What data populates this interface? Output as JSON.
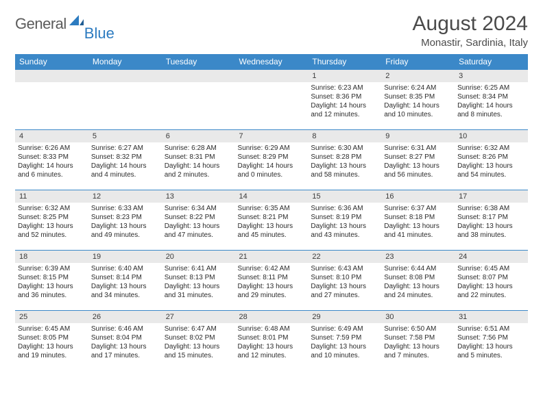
{
  "logo": {
    "text1": "General",
    "text2": "Blue"
  },
  "title": "August 2024",
  "location": "Monastir, Sardinia, Italy",
  "colors": {
    "header_bg": "#3b88c8",
    "header_text": "#ffffff",
    "daybar_bg": "#e9e9e9",
    "row_border": "#3b88c8",
    "logo_gray": "#5a5a5a",
    "logo_blue": "#2c7bc0",
    "body_text": "#2a2a2a"
  },
  "weekdays": [
    "Sunday",
    "Monday",
    "Tuesday",
    "Wednesday",
    "Thursday",
    "Friday",
    "Saturday"
  ],
  "weeks": [
    [
      null,
      null,
      null,
      null,
      {
        "n": "1",
        "sr": "Sunrise: 6:23 AM",
        "ss": "Sunset: 8:36 PM",
        "d1": "Daylight: 14 hours",
        "d2": "and 12 minutes."
      },
      {
        "n": "2",
        "sr": "Sunrise: 6:24 AM",
        "ss": "Sunset: 8:35 PM",
        "d1": "Daylight: 14 hours",
        "d2": "and 10 minutes."
      },
      {
        "n": "3",
        "sr": "Sunrise: 6:25 AM",
        "ss": "Sunset: 8:34 PM",
        "d1": "Daylight: 14 hours",
        "d2": "and 8 minutes."
      }
    ],
    [
      {
        "n": "4",
        "sr": "Sunrise: 6:26 AM",
        "ss": "Sunset: 8:33 PM",
        "d1": "Daylight: 14 hours",
        "d2": "and 6 minutes."
      },
      {
        "n": "5",
        "sr": "Sunrise: 6:27 AM",
        "ss": "Sunset: 8:32 PM",
        "d1": "Daylight: 14 hours",
        "d2": "and 4 minutes."
      },
      {
        "n": "6",
        "sr": "Sunrise: 6:28 AM",
        "ss": "Sunset: 8:31 PM",
        "d1": "Daylight: 14 hours",
        "d2": "and 2 minutes."
      },
      {
        "n": "7",
        "sr": "Sunrise: 6:29 AM",
        "ss": "Sunset: 8:29 PM",
        "d1": "Daylight: 14 hours",
        "d2": "and 0 minutes."
      },
      {
        "n": "8",
        "sr": "Sunrise: 6:30 AM",
        "ss": "Sunset: 8:28 PM",
        "d1": "Daylight: 13 hours",
        "d2": "and 58 minutes."
      },
      {
        "n": "9",
        "sr": "Sunrise: 6:31 AM",
        "ss": "Sunset: 8:27 PM",
        "d1": "Daylight: 13 hours",
        "d2": "and 56 minutes."
      },
      {
        "n": "10",
        "sr": "Sunrise: 6:32 AM",
        "ss": "Sunset: 8:26 PM",
        "d1": "Daylight: 13 hours",
        "d2": "and 54 minutes."
      }
    ],
    [
      {
        "n": "11",
        "sr": "Sunrise: 6:32 AM",
        "ss": "Sunset: 8:25 PM",
        "d1": "Daylight: 13 hours",
        "d2": "and 52 minutes."
      },
      {
        "n": "12",
        "sr": "Sunrise: 6:33 AM",
        "ss": "Sunset: 8:23 PM",
        "d1": "Daylight: 13 hours",
        "d2": "and 49 minutes."
      },
      {
        "n": "13",
        "sr": "Sunrise: 6:34 AM",
        "ss": "Sunset: 8:22 PM",
        "d1": "Daylight: 13 hours",
        "d2": "and 47 minutes."
      },
      {
        "n": "14",
        "sr": "Sunrise: 6:35 AM",
        "ss": "Sunset: 8:21 PM",
        "d1": "Daylight: 13 hours",
        "d2": "and 45 minutes."
      },
      {
        "n": "15",
        "sr": "Sunrise: 6:36 AM",
        "ss": "Sunset: 8:19 PM",
        "d1": "Daylight: 13 hours",
        "d2": "and 43 minutes."
      },
      {
        "n": "16",
        "sr": "Sunrise: 6:37 AM",
        "ss": "Sunset: 8:18 PM",
        "d1": "Daylight: 13 hours",
        "d2": "and 41 minutes."
      },
      {
        "n": "17",
        "sr": "Sunrise: 6:38 AM",
        "ss": "Sunset: 8:17 PM",
        "d1": "Daylight: 13 hours",
        "d2": "and 38 minutes."
      }
    ],
    [
      {
        "n": "18",
        "sr": "Sunrise: 6:39 AM",
        "ss": "Sunset: 8:15 PM",
        "d1": "Daylight: 13 hours",
        "d2": "and 36 minutes."
      },
      {
        "n": "19",
        "sr": "Sunrise: 6:40 AM",
        "ss": "Sunset: 8:14 PM",
        "d1": "Daylight: 13 hours",
        "d2": "and 34 minutes."
      },
      {
        "n": "20",
        "sr": "Sunrise: 6:41 AM",
        "ss": "Sunset: 8:13 PM",
        "d1": "Daylight: 13 hours",
        "d2": "and 31 minutes."
      },
      {
        "n": "21",
        "sr": "Sunrise: 6:42 AM",
        "ss": "Sunset: 8:11 PM",
        "d1": "Daylight: 13 hours",
        "d2": "and 29 minutes."
      },
      {
        "n": "22",
        "sr": "Sunrise: 6:43 AM",
        "ss": "Sunset: 8:10 PM",
        "d1": "Daylight: 13 hours",
        "d2": "and 27 minutes."
      },
      {
        "n": "23",
        "sr": "Sunrise: 6:44 AM",
        "ss": "Sunset: 8:08 PM",
        "d1": "Daylight: 13 hours",
        "d2": "and 24 minutes."
      },
      {
        "n": "24",
        "sr": "Sunrise: 6:45 AM",
        "ss": "Sunset: 8:07 PM",
        "d1": "Daylight: 13 hours",
        "d2": "and 22 minutes."
      }
    ],
    [
      {
        "n": "25",
        "sr": "Sunrise: 6:45 AM",
        "ss": "Sunset: 8:05 PM",
        "d1": "Daylight: 13 hours",
        "d2": "and 19 minutes."
      },
      {
        "n": "26",
        "sr": "Sunrise: 6:46 AM",
        "ss": "Sunset: 8:04 PM",
        "d1": "Daylight: 13 hours",
        "d2": "and 17 minutes."
      },
      {
        "n": "27",
        "sr": "Sunrise: 6:47 AM",
        "ss": "Sunset: 8:02 PM",
        "d1": "Daylight: 13 hours",
        "d2": "and 15 minutes."
      },
      {
        "n": "28",
        "sr": "Sunrise: 6:48 AM",
        "ss": "Sunset: 8:01 PM",
        "d1": "Daylight: 13 hours",
        "d2": "and 12 minutes."
      },
      {
        "n": "29",
        "sr": "Sunrise: 6:49 AM",
        "ss": "Sunset: 7:59 PM",
        "d1": "Daylight: 13 hours",
        "d2": "and 10 minutes."
      },
      {
        "n": "30",
        "sr": "Sunrise: 6:50 AM",
        "ss": "Sunset: 7:58 PM",
        "d1": "Daylight: 13 hours",
        "d2": "and 7 minutes."
      },
      {
        "n": "31",
        "sr": "Sunrise: 6:51 AM",
        "ss": "Sunset: 7:56 PM",
        "d1": "Daylight: 13 hours",
        "d2": "and 5 minutes."
      }
    ]
  ]
}
